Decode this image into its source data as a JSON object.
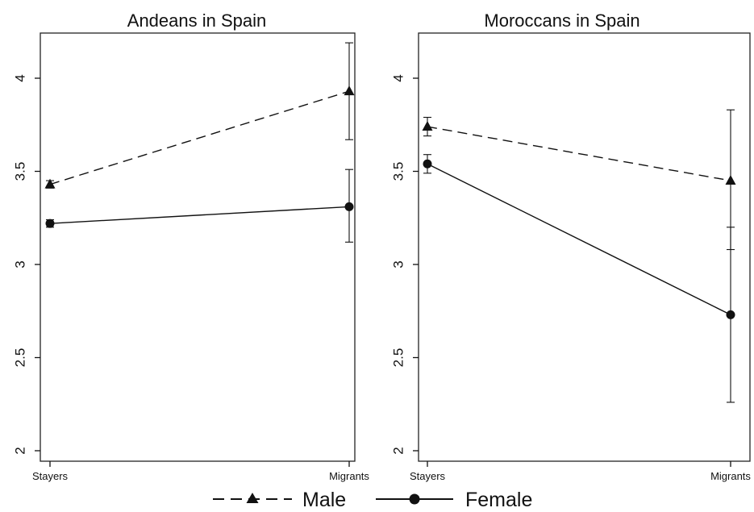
{
  "chart_data": [
    {
      "type": "line",
      "title": "Andeans in Spain",
      "categories": [
        "Stayers",
        "Migrants"
      ],
      "ylim": [
        2,
        4.2
      ],
      "yticks": [
        2,
        2.5,
        3,
        3.5,
        4
      ],
      "ytick_labels": [
        "2",
        "2.5",
        "3",
        "3.5",
        "4"
      ],
      "series": [
        {
          "name": "Male",
          "line_style": "dashed",
          "marker": "triangle",
          "values": [
            3.43,
            3.93
          ],
          "ci_low": [
            3.41,
            3.67
          ],
          "ci_high": [
            3.45,
            4.19
          ]
        },
        {
          "name": "Female",
          "line_style": "solid",
          "marker": "circle",
          "values": [
            3.22,
            3.31
          ],
          "ci_low": [
            3.2,
            3.12
          ],
          "ci_high": [
            3.24,
            3.51
          ]
        }
      ]
    },
    {
      "type": "line",
      "title": "Moroccans in Spain",
      "categories": [
        "Stayers",
        "Migrants"
      ],
      "ylim": [
        2,
        4.2
      ],
      "yticks": [
        2,
        2.5,
        3,
        3.5,
        4
      ],
      "ytick_labels": [
        "2",
        "2.5",
        "3",
        "3.5",
        "4"
      ],
      "series": [
        {
          "name": "Male",
          "line_style": "dashed",
          "marker": "triangle",
          "values": [
            3.74,
            3.45
          ],
          "ci_low": [
            3.69,
            3.08
          ],
          "ci_high": [
            3.79,
            3.83
          ]
        },
        {
          "name": "Female",
          "line_style": "solid",
          "marker": "circle",
          "values": [
            3.54,
            2.73
          ],
          "ci_low": [
            3.49,
            2.26
          ],
          "ci_high": [
            3.59,
            3.2
          ]
        }
      ]
    }
  ],
  "legend": {
    "placement": "bottom-center",
    "items": [
      {
        "label": "Male",
        "line_style": "dashed",
        "marker": "triangle"
      },
      {
        "label": "Female",
        "line_style": "solid",
        "marker": "circle"
      }
    ]
  },
  "colors": {
    "ink": "#111111",
    "background": "#ffffff"
  }
}
